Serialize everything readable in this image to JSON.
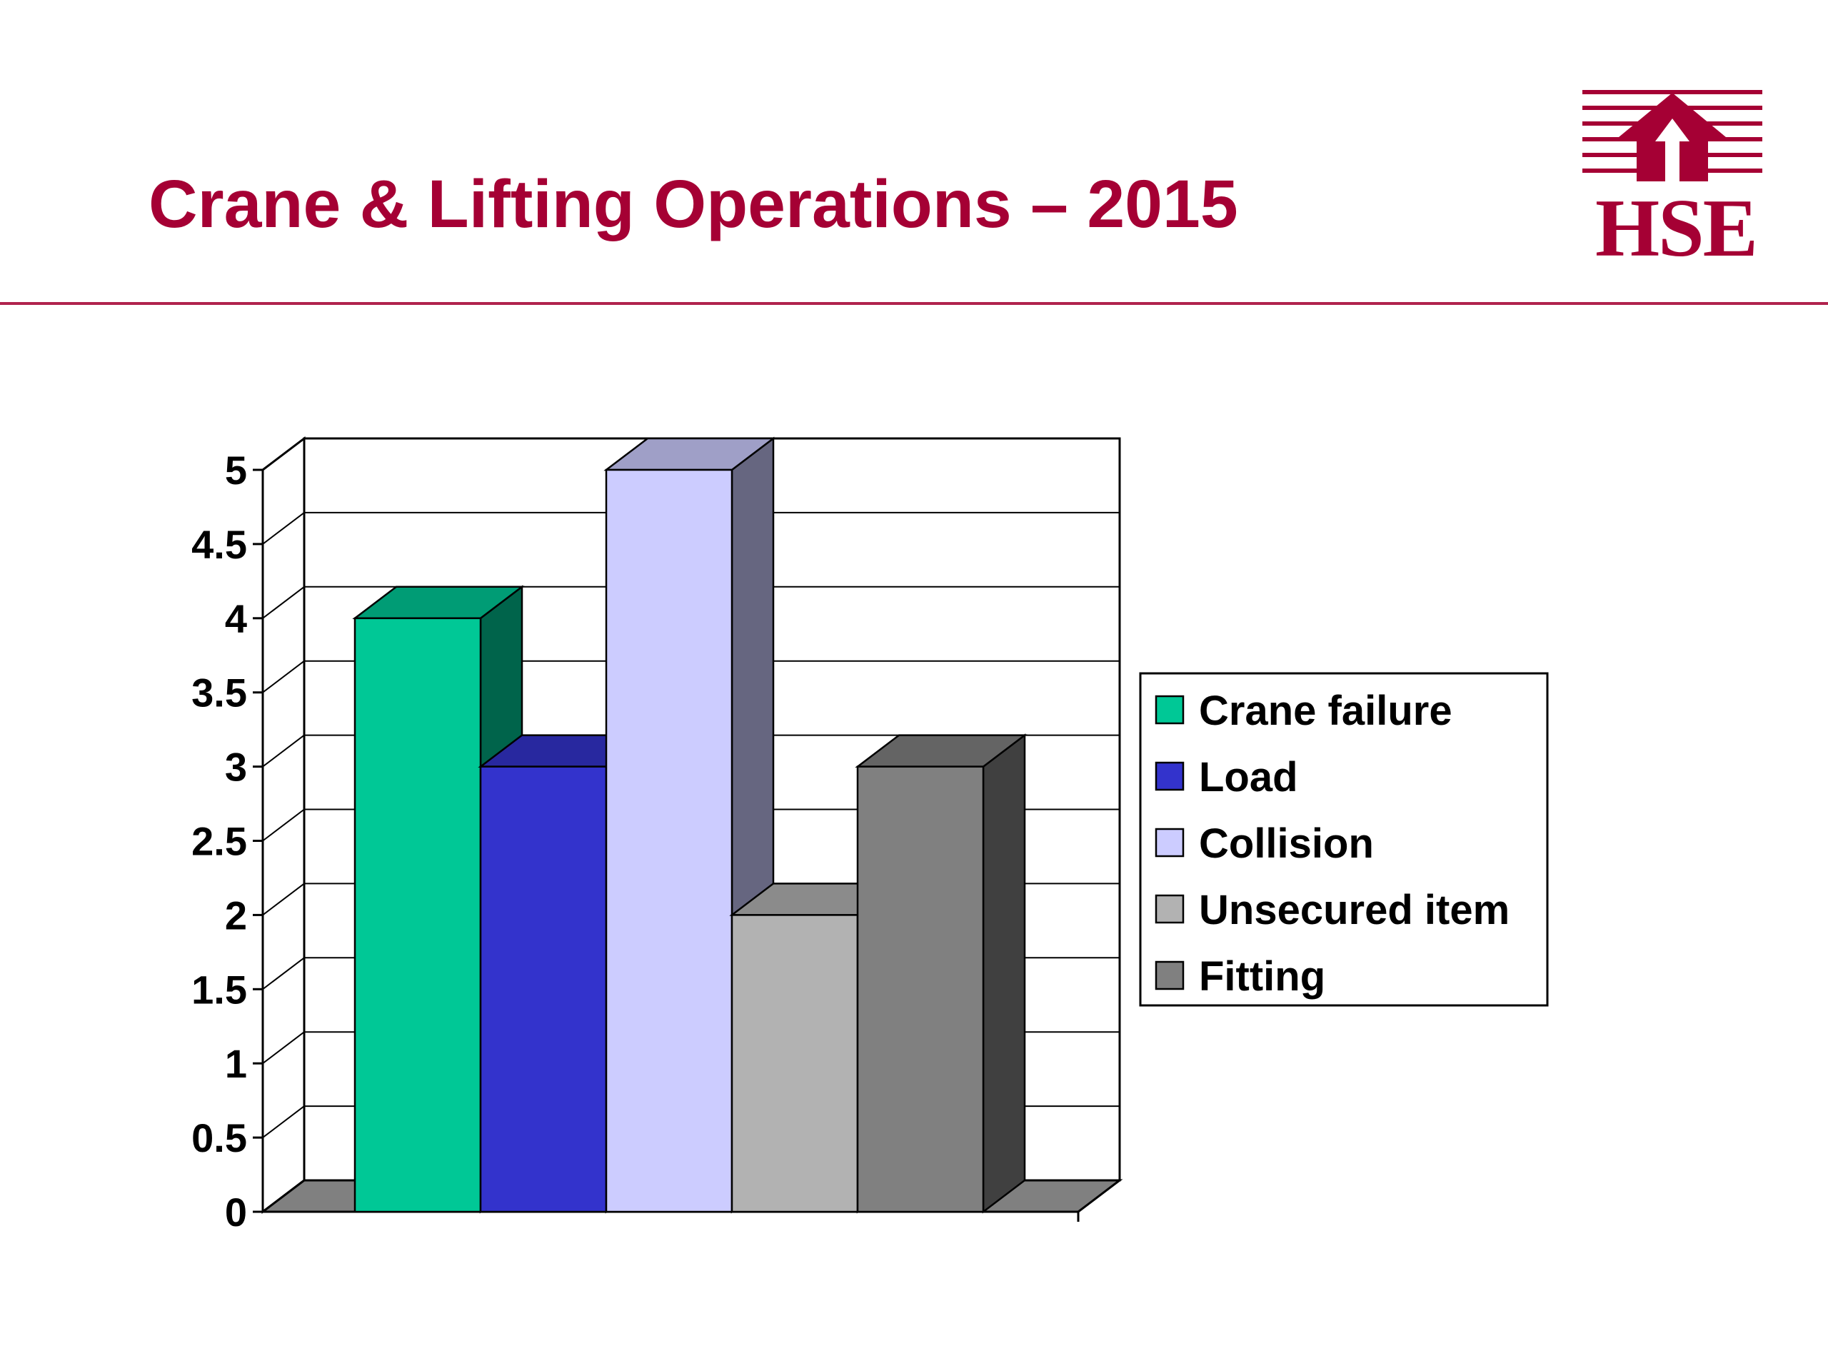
{
  "slide": {
    "title": "Crane & Lifting Operations – 2015",
    "logo_text": "HSE",
    "accent_color": "#A50034"
  },
  "chart_data": {
    "type": "bar",
    "style": "3d-clustered",
    "title": "",
    "xlabel": "",
    "ylabel": "",
    "ylim": [
      0,
      5
    ],
    "y_tick_step": 0.5,
    "y_tick_labels": [
      "0",
      "0.5",
      "1",
      "1.5",
      "2",
      "2.5",
      "3",
      "3.5",
      "4",
      "4.5",
      "5"
    ],
    "grid": true,
    "legend_position": "right",
    "series": [
      {
        "name": "Crane failure",
        "values": [
          4
        ],
        "color": "#00C896"
      },
      {
        "name": "Load",
        "values": [
          3
        ],
        "color": "#3333CC"
      },
      {
        "name": "Collision",
        "values": [
          5
        ],
        "color": "#CCCCFF"
      },
      {
        "name": "Unsecured item",
        "values": [
          2
        ],
        "color": "#B2B2B2"
      },
      {
        "name": "Fitting",
        "values": [
          3
        ],
        "color": "#808080"
      }
    ]
  }
}
